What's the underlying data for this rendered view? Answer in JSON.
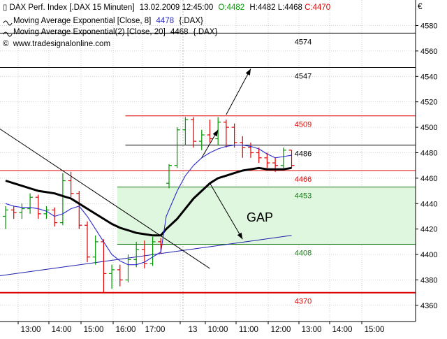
{
  "header": {
    "instrument": "DAX Perf. Index [.DAX  15 Minuten]",
    "datetime": "13.02.2009 12:45:00",
    "ohlc": {
      "open_label": "O:4482",
      "high_label": "H:4482",
      "low_label": "L:4468",
      "close_label": "C:4470"
    },
    "ma1": {
      "label": "Moving Average Exponential [Close, 8]",
      "value": "4478",
      "suffix": "{.DAX}"
    },
    "ma2": {
      "label": "Moving Average Exponential(2) [Close, 20]",
      "value": "4468",
      "suffix": "{.DAX}"
    },
    "source": "www.tradesignalonline.com",
    "currency": "€"
  },
  "colors": {
    "up_candle": "#009900",
    "down_candle": "#dd0000",
    "ma1": "#2b2bcc",
    "ma2": "#000000",
    "gap_fill": "#dff7df",
    "level_red": "#dd0000",
    "level_green": "#1a7a1a",
    "level_black": "#000000",
    "trend_blue": "#1c1caa",
    "grid": "#c8c8c8",
    "open_green": "#009900",
    "close_red": "#dd0000"
  },
  "chart_data": {
    "type": "candlestick",
    "timeframe": "15 Minuten",
    "ylim": [
      4355,
      4590
    ],
    "yticks": [
      4360,
      4380,
      4400,
      4420,
      4440,
      4460,
      4480,
      4500,
      4520,
      4540,
      4560,
      4580
    ],
    "xticks": [
      "13:00",
      "14:00",
      "15:00",
      "16:00",
      "17:00",
      "13",
      "10:00",
      "11:00",
      "12:00",
      "13:00",
      "14:00",
      "15:00"
    ],
    "grid": true,
    "annotation_text": "GAP",
    "horizontal_levels": [
      {
        "value": 4574,
        "label": "4574",
        "color": "level_black",
        "x_start_index": -1
      },
      {
        "value": 4547,
        "label": "4547",
        "color": "level_black",
        "x_start_index": -1
      },
      {
        "value": 4509,
        "label": "4509",
        "color": "level_red",
        "x_start_index": 15
      },
      {
        "value": 4486,
        "label": "4486",
        "color": "level_black",
        "x_start_index": 15
      },
      {
        "value": 4466,
        "label": "4466",
        "color": "level_red",
        "x_start_index": -1
      },
      {
        "value": 4453,
        "label": "4453",
        "color": "level_green",
        "x_start_index": 14
      },
      {
        "value": 4408,
        "label": "4408",
        "color": "level_green",
        "x_start_index": 14
      },
      {
        "value": 4370,
        "label": "4370",
        "color": "level_red",
        "x_start_index": -1
      }
    ],
    "gap_zone": {
      "from": 4408,
      "to": 4453,
      "x_start_index": 14
    },
    "trendlines": [
      {
        "color": "trend_blue",
        "from": {
          "i": -1,
          "v": 4383
        },
        "to": {
          "i": 35,
          "v": 4415
        }
      },
      {
        "color": "level_black",
        "from": {
          "i": -1,
          "v": 4500
        },
        "to": {
          "i": 25,
          "v": 4389
        }
      }
    ],
    "arrows": [
      {
        "from": {
          "i": 24,
          "v": 4476
        },
        "to": {
          "i": 26,
          "v": 4498
        }
      },
      {
        "from": {
          "i": 27,
          "v": 4510
        },
        "to": {
          "i": 30,
          "v": 4546
        }
      },
      {
        "from": {
          "i": 25,
          "v": 4456
        },
        "to": {
          "i": 29,
          "v": 4412
        }
      }
    ],
    "ohlc": [
      {
        "t": "12:30",
        "o": 4430,
        "h": 4438,
        "l": 4420,
        "c": 4435
      },
      {
        "t": "12:45",
        "o": 4435,
        "h": 4438,
        "l": 4428,
        "c": 4433
      },
      {
        "t": "13:00",
        "o": 4433,
        "h": 4440,
        "l": 4428,
        "c": 4436
      },
      {
        "t": "13:15",
        "o": 4436,
        "h": 4448,
        "l": 4432,
        "c": 4445
      },
      {
        "t": "13:30",
        "o": 4445,
        "h": 4447,
        "l": 4428,
        "c": 4432
      },
      {
        "t": "13:45",
        "o": 4432,
        "h": 4438,
        "l": 4428,
        "c": 4435
      },
      {
        "t": "14:00",
        "o": 4435,
        "h": 4437,
        "l": 4422,
        "c": 4425
      },
      {
        "t": "14:15",
        "o": 4425,
        "h": 4464,
        "l": 4423,
        "c": 4458
      },
      {
        "t": "14:30",
        "o": 4458,
        "h": 4465,
        "l": 4445,
        "c": 4448
      },
      {
        "t": "14:45",
        "o": 4448,
        "h": 4450,
        "l": 4420,
        "c": 4423
      },
      {
        "t": "15:00",
        "o": 4423,
        "h": 4426,
        "l": 4394,
        "c": 4398
      },
      {
        "t": "15:15",
        "o": 4398,
        "h": 4415,
        "l": 4392,
        "c": 4410
      },
      {
        "t": "15:30",
        "o": 4410,
        "h": 4412,
        "l": 4370,
        "c": 4385
      },
      {
        "t": "15:45",
        "o": 4385,
        "h": 4392,
        "l": 4373,
        "c": 4388
      },
      {
        "t": "16:00",
        "o": 4388,
        "h": 4392,
        "l": 4375,
        "c": 4380
      },
      {
        "t": "16:15",
        "o": 4380,
        "h": 4400,
        "l": 4378,
        "c": 4396
      },
      {
        "t": "16:30",
        "o": 4396,
        "h": 4410,
        "l": 4390,
        "c": 4404
      },
      {
        "t": "16:45",
        "o": 4404,
        "h": 4411,
        "l": 4389,
        "c": 4393
      },
      {
        "t": "17:00",
        "o": 4393,
        "h": 4414,
        "l": 4391,
        "c": 4410
      },
      {
        "t": "17:15",
        "o": 4410,
        "h": 4413,
        "l": 4401,
        "c": 4408
      },
      {
        "t": "09:00",
        "o": 4456,
        "h": 4471,
        "l": 4452,
        "c": 4470
      },
      {
        "t": "09:15",
        "o": 4470,
        "h": 4500,
        "l": 4468,
        "c": 4498
      },
      {
        "t": "09:30",
        "o": 4498,
        "h": 4508,
        "l": 4486,
        "c": 4506
      },
      {
        "t": "09:45",
        "o": 4506,
        "h": 4508,
        "l": 4484,
        "c": 4489
      },
      {
        "t": "10:00",
        "o": 4489,
        "h": 4498,
        "l": 4482,
        "c": 4494
      },
      {
        "t": "10:15",
        "o": 4494,
        "h": 4506,
        "l": 4488,
        "c": 4491
      },
      {
        "t": "10:30",
        "o": 4491,
        "h": 4508,
        "l": 4486,
        "c": 4504
      },
      {
        "t": "10:45",
        "o": 4504,
        "h": 4506,
        "l": 4484,
        "c": 4500
      },
      {
        "t": "11:00",
        "o": 4500,
        "h": 4503,
        "l": 4484,
        "c": 4488
      },
      {
        "t": "11:15",
        "o": 4488,
        "h": 4493,
        "l": 4476,
        "c": 4484
      },
      {
        "t": "11:30",
        "o": 4484,
        "h": 4488,
        "l": 4476,
        "c": 4480
      },
      {
        "t": "11:45",
        "o": 4480,
        "h": 4484,
        "l": 4472,
        "c": 4476
      },
      {
        "t": "12:00",
        "o": 4476,
        "h": 4480,
        "l": 4468,
        "c": 4472
      },
      {
        "t": "12:15",
        "o": 4472,
        "h": 4476,
        "l": 4465,
        "c": 4470
      },
      {
        "t": "12:30",
        "o": 4470,
        "h": 4484,
        "l": 4468,
        "c": 4482
      },
      {
        "t": "12:45",
        "o": 4482,
        "h": 4482,
        "l": 4468,
        "c": 4470
      }
    ],
    "ema8": [
      4440,
      4438,
      4437,
      4437,
      4436,
      4434,
      4430,
      4432,
      4436,
      4438,
      4430,
      4420,
      4410,
      4400,
      4395,
      4392,
      4392,
      4394,
      4398,
      4402,
      4430,
      4450,
      4462,
      4470,
      4476,
      4480,
      4483,
      4485,
      4486,
      4486,
      4485,
      4483,
      4479,
      4476,
      4477,
      4478
    ],
    "ema20": [
      4458,
      4456,
      4454,
      4452,
      4450,
      4449,
      4448,
      4446,
      4444,
      4440,
      4436,
      4432,
      4428,
      4424,
      4421,
      4419,
      4417,
      4416,
      4415,
      4415,
      4420,
      4428,
      4436,
      4444,
      4450,
      4456,
      4460,
      4462,
      4464,
      4466,
      4467,
      4468,
      4467,
      4467,
      4467,
      4468
    ]
  }
}
